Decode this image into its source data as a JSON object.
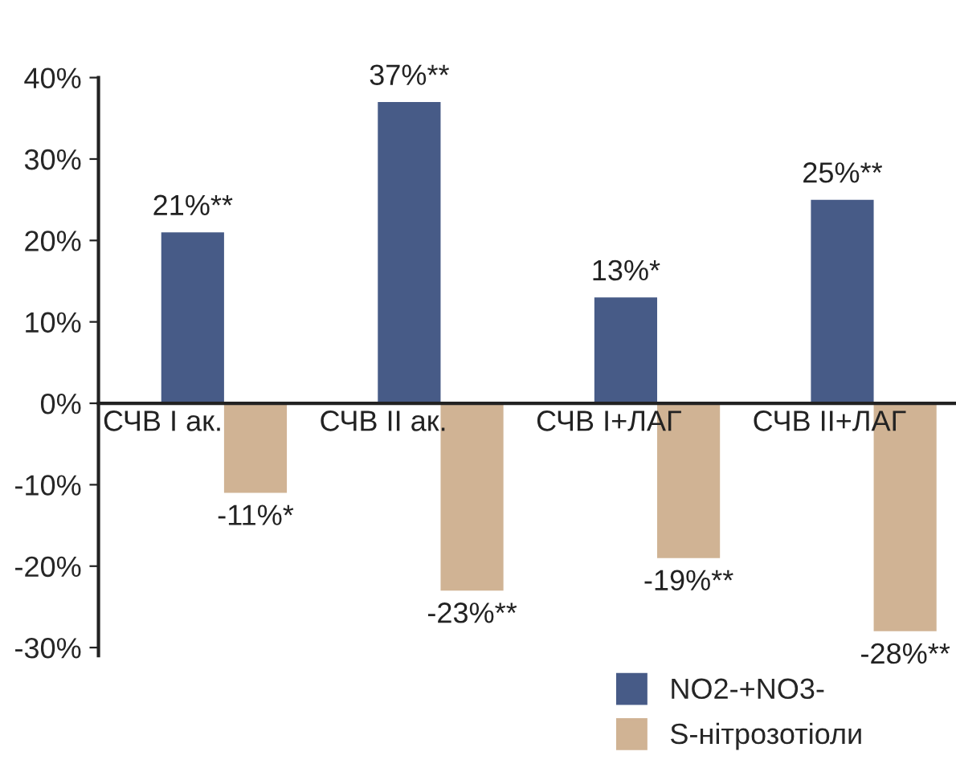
{
  "chart_data": {
    "type": "bar",
    "categories": [
      "СЧВ I ак.",
      "СЧВ II ак.",
      "СЧВ I+ЛАГ",
      "СЧВ II+ЛАГ"
    ],
    "series": [
      {
        "name": "NO2-+NO3-",
        "color": "#475b87",
        "values": [
          21,
          37,
          13,
          25
        ],
        "value_labels": [
          "21%**",
          "37%**",
          "13%*",
          "25%**"
        ]
      },
      {
        "name": "S-нітрозотіоли",
        "color": "#d0b394",
        "values": [
          -11,
          -23,
          -19,
          -28
        ],
        "value_labels": [
          "-11%*",
          "-23%**",
          "-19%**",
          "-28%**"
        ]
      }
    ],
    "ylim": [
      -31,
      40
    ],
    "yticks": [
      {
        "value": -30,
        "label": "-30%"
      },
      {
        "value": -20,
        "label": "-20%"
      },
      {
        "value": -10,
        "label": "-10%"
      },
      {
        "value": 0,
        "label": "0%"
      },
      {
        "value": 10,
        "label": "10%"
      },
      {
        "value": 20,
        "label": "20%"
      },
      {
        "value": 30,
        "label": "30%"
      },
      {
        "value": 40,
        "label": "40%"
      }
    ],
    "grid": false,
    "legend": "bottom right"
  }
}
